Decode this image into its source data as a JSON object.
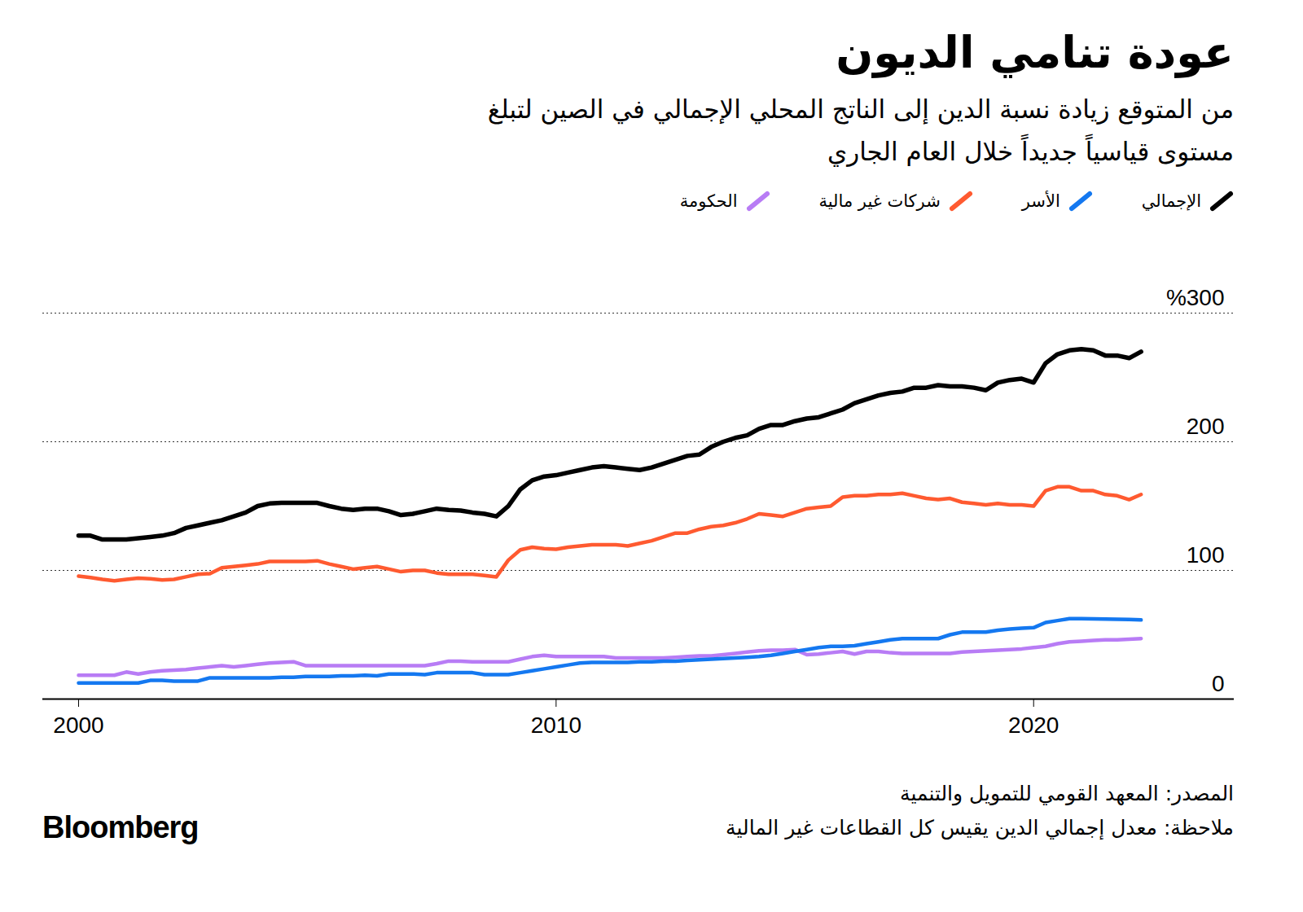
{
  "chart_data": {
    "type": "line",
    "title": "عودة تنامي الديون",
    "subtitle": "من المتوقع زيادة نسبة الدين إلى الناتج المحلي الإجمالي في الصين لتبلغ مستوى قياسياً جديداً خلال العام الجاري",
    "source": "المصدر: المعهد القومي للتمويل والتنمية",
    "note": "ملاحظة: معدل إجمالي الدين يقيس كل القطاعات غير المالية",
    "brand": "Bloomberg",
    "grid": true,
    "legend": "top",
    "xlim": [
      1999.25,
      2024.2
    ],
    "xticks": [
      2000,
      2010,
      2020
    ],
    "ylim": [
      0,
      300
    ],
    "yticks": [
      0,
      100,
      200,
      {
        "value": 300,
        "label": "%300"
      }
    ],
    "x": [
      2000,
      2000.25,
      2000.5,
      2000.75,
      2001,
      2001.25,
      2001.5,
      2001.75,
      2002,
      2002.25,
      2002.5,
      2002.75,
      2003,
      2003.25,
      2003.5,
      2003.75,
      2004,
      2004.25,
      2004.5,
      2004.75,
      2005,
      2005.25,
      2005.5,
      2005.75,
      2006,
      2006.25,
      2006.5,
      2006.75,
      2007,
      2007.25,
      2007.5,
      2007.75,
      2008,
      2008.25,
      2008.5,
      2008.75,
      2009,
      2009.25,
      2009.5,
      2009.75,
      2010,
      2010.25,
      2010.5,
      2010.75,
      2011,
      2011.25,
      2011.5,
      2011.75,
      2012,
      2012.25,
      2012.5,
      2012.75,
      2013,
      2013.25,
      2013.5,
      2013.75,
      2014,
      2014.25,
      2014.5,
      2014.75,
      2015,
      2015.25,
      2015.5,
      2015.75,
      2016,
      2016.25,
      2016.5,
      2016.75,
      2017,
      2017.25,
      2017.5,
      2017.75,
      2018,
      2018.25,
      2018.5,
      2018.75,
      2019,
      2019.25,
      2019.5,
      2019.75,
      2020,
      2020.25,
      2020.5,
      2020.75,
      2021,
      2021.25,
      2021.5,
      2021.75,
      2022,
      2022.25
    ],
    "series": [
      {
        "name": "الإجمالي",
        "color": "#000000",
        "values": [
          127,
          127,
          124,
          124,
          124,
          125,
          126,
          127,
          129,
          133,
          135,
          137,
          139,
          142,
          145,
          150,
          152,
          152.5,
          152.5,
          152.5,
          152.5,
          150,
          148,
          147,
          148,
          148,
          146,
          143,
          144,
          146,
          148,
          147,
          146.5,
          145,
          144,
          142,
          150,
          163,
          170,
          173,
          174,
          176,
          178,
          180,
          181,
          180,
          179,
          178,
          180,
          183,
          186,
          189,
          190,
          196,
          200,
          203,
          205,
          210,
          213,
          213,
          216,
          218,
          219,
          222,
          225,
          230,
          233,
          236,
          238,
          239,
          242,
          242,
          244,
          243,
          243,
          242,
          240,
          246,
          248,
          249,
          246,
          261,
          268,
          271,
          272,
          271,
          267,
          267,
          265,
          270
        ]
      },
      {
        "name": "الأسر",
        "color": "#1478f0",
        "values": [
          12.5,
          12.5,
          12.5,
          12.5,
          12.5,
          12.5,
          14.5,
          14.5,
          14,
          14,
          14,
          16.5,
          16.5,
          16.5,
          16.5,
          16.5,
          16.5,
          17,
          17,
          17.5,
          17.5,
          17.5,
          18,
          18,
          18.5,
          18,
          19.5,
          19.5,
          19.5,
          19,
          20.5,
          20.5,
          20.5,
          20.5,
          19,
          19,
          19,
          20.5,
          22,
          23.5,
          25,
          26.5,
          28,
          28.5,
          28.5,
          28.5,
          28.5,
          29,
          29,
          29.5,
          29.5,
          30,
          30.5,
          31,
          31.5,
          32,
          32.5,
          33,
          34,
          35.5,
          37,
          38.5,
          40,
          41,
          41,
          41.5,
          43,
          44.5,
          46,
          47,
          47,
          47,
          47,
          50,
          52,
          52,
          52,
          53.5,
          54.5,
          55,
          55.5,
          59.5,
          61,
          62.5,
          62.5,
          62.3,
          62.2,
          62,
          61.8,
          61.5
        ]
      },
      {
        "name": "شركات غير مالية",
        "color": "#ff5a30",
        "values": [
          95.5,
          94.5,
          93,
          92,
          93,
          94,
          93.5,
          92.5,
          93,
          95,
          97,
          97.5,
          102,
          103,
          104,
          105,
          107,
          107,
          107,
          107,
          107.5,
          105,
          103,
          101,
          102,
          103,
          101,
          99,
          100,
          100,
          98,
          97,
          97,
          97,
          96,
          95,
          108,
          116,
          118,
          117,
          116.5,
          118,
          119,
          120,
          120,
          120,
          119,
          121,
          123,
          126,
          129,
          129,
          132,
          134,
          135,
          137,
          140,
          144,
          143,
          142,
          145,
          148,
          149,
          150,
          157,
          158,
          158,
          159,
          159,
          160,
          158,
          156,
          155,
          156,
          153,
          152,
          151,
          152,
          151,
          151,
          150,
          162,
          165,
          165,
          162,
          162,
          159,
          158,
          155,
          159
        ]
      },
      {
        "name": "الحكومة",
        "color": "#b87cf5",
        "values": [
          18.5,
          18.5,
          18.5,
          18.5,
          21,
          19.5,
          21,
          22,
          22.5,
          23,
          24,
          25,
          26,
          25,
          26,
          27,
          28,
          28.5,
          29,
          26,
          26,
          26,
          26,
          26,
          26,
          26,
          26,
          26,
          26,
          26,
          27.5,
          29.5,
          29.5,
          29,
          29,
          29,
          29,
          31,
          33,
          34,
          33,
          33,
          33,
          33,
          33,
          32,
          32,
          32,
          32,
          32,
          32.5,
          33,
          33.5,
          33.5,
          34.5,
          35.5,
          36.5,
          37.5,
          38,
          38,
          38.5,
          34.5,
          35,
          36,
          37,
          35,
          37,
          37,
          36,
          35.5,
          35.5,
          35.5,
          35.5,
          35.5,
          36.5,
          37,
          37.5,
          38,
          38.5,
          39,
          40,
          41,
          43,
          44.5,
          45,
          45.5,
          46,
          46,
          46.5,
          47
        ]
      }
    ]
  }
}
